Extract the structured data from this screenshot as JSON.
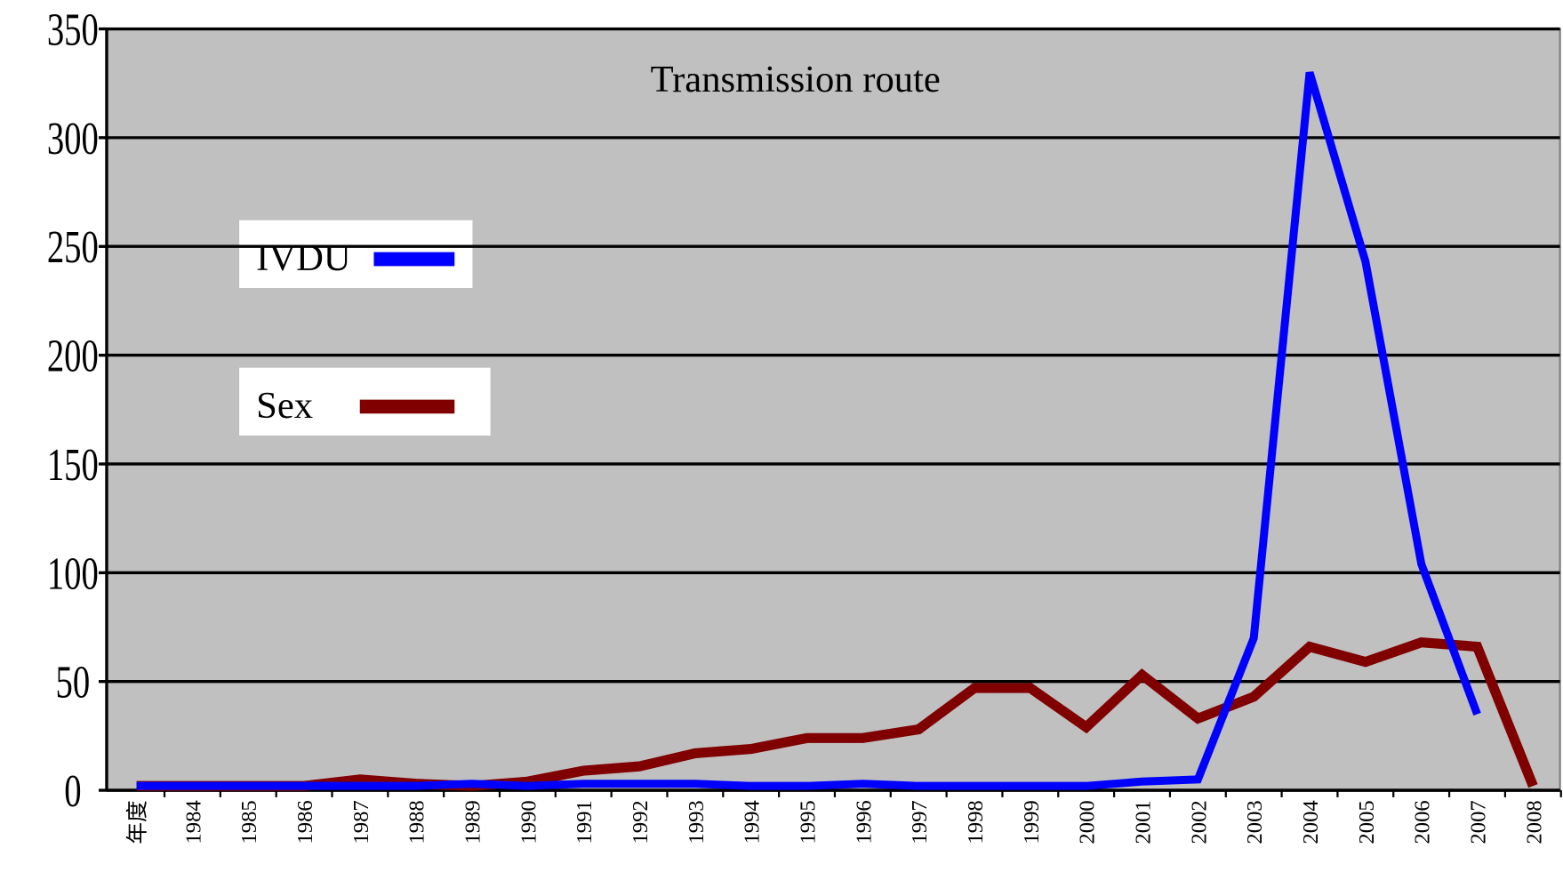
{
  "chart_data": {
    "type": "line",
    "title": "Transmission route",
    "categories": [
      "年度",
      "1984",
      "1985",
      "1986",
      "1987",
      "1988",
      "1989",
      "1990",
      "1991",
      "1992",
      "1993",
      "1994",
      "1995",
      "1996",
      "1997",
      "1998",
      "1999",
      "2000",
      "2001",
      "2002",
      "2003",
      "2004",
      "2005",
      "2006",
      "2007",
      "2008"
    ],
    "series": [
      {
        "name": "IVDU",
        "color": "#0000ff",
        "values": [
          2,
          2,
          2,
          2,
          2,
          2,
          3,
          2,
          3,
          3,
          3,
          2,
          2,
          3,
          2,
          2,
          2,
          2,
          4,
          5,
          70,
          330,
          243,
          104,
          35,
          null
        ]
      },
      {
        "name": "Sex",
        "color": "#800000",
        "values": [
          2,
          2,
          2,
          2,
          5,
          3,
          2,
          4,
          9,
          11,
          17,
          19,
          24,
          24,
          28,
          47,
          47,
          29,
          53,
          33,
          43,
          66,
          59,
          68,
          66,
          2
        ]
      }
    ],
    "ylim": [
      0,
      350
    ],
    "yticks": [
      0,
      50,
      100,
      150,
      200,
      250,
      300,
      350
    ],
    "grid": true
  }
}
